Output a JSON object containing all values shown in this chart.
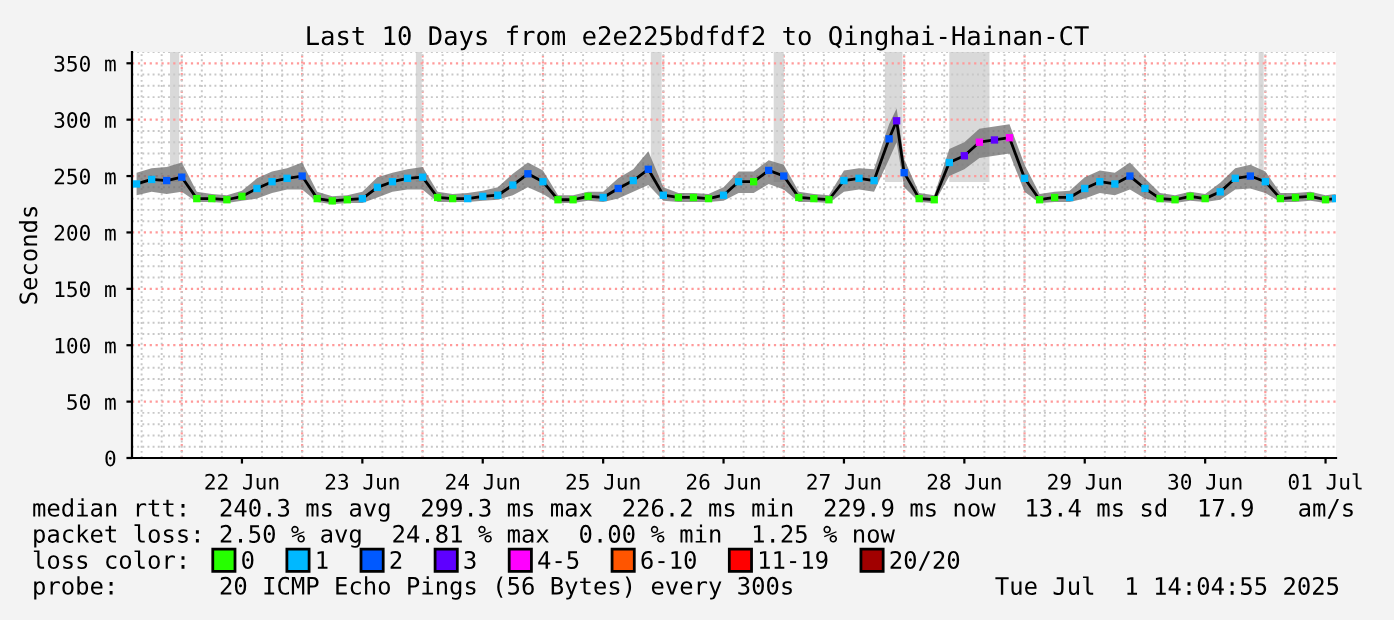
{
  "chart_data": {
    "type": "line",
    "title": "Last 10 Days from e2e225bdfdf2 to Qinghai-Hainan-CT",
    "ylabel": "Seconds",
    "xlim": [
      "2025-06-21T14:05",
      "2025-07-01T14:05"
    ],
    "xticks": [
      {
        "value": "2025-06-22T12:00",
        "label": "22 Jun"
      },
      {
        "value": "2025-06-23T12:00",
        "label": "23 Jun"
      },
      {
        "value": "2025-06-24T12:00",
        "label": "24 Jun"
      },
      {
        "value": "2025-06-25T12:00",
        "label": "25 Jun"
      },
      {
        "value": "2025-06-26T12:00",
        "label": "26 Jun"
      },
      {
        "value": "2025-06-27T12:00",
        "label": "27 Jun"
      },
      {
        "value": "2025-06-28T12:00",
        "label": "28 Jun"
      },
      {
        "value": "2025-06-29T12:00",
        "label": "29 Jun"
      },
      {
        "value": "2025-06-30T12:00",
        "label": "30 Jun"
      },
      {
        "value": "2025-07-01T12:00",
        "label": "01 Jul"
      }
    ],
    "ylim": [
      0,
      360
    ],
    "yticks": [
      0,
      {
        "value": 50,
        "label": "50 m"
      },
      {
        "value": 100,
        "label": "100 m"
      },
      {
        "value": 150,
        "label": "150 m"
      },
      {
        "value": 200,
        "label": "200 m"
      },
      {
        "value": 250,
        "label": "250 m"
      },
      {
        "value": 300,
        "label": "300 m"
      },
      {
        "value": 350,
        "label": "350 m"
      }
    ],
    "grid": true,
    "legend": "bottom",
    "legend_title": "loss color:",
    "x": [
      "2025-06-21T15:00",
      "2025-06-21T18:00",
      "2025-06-21T21:00",
      "2025-06-22T00:00",
      "2025-06-22T03:00",
      "2025-06-22T06:00",
      "2025-06-22T09:00",
      "2025-06-22T12:00",
      "2025-06-22T15:00",
      "2025-06-22T18:00",
      "2025-06-22T21:00",
      "2025-06-23T00:00",
      "2025-06-23T03:00",
      "2025-06-23T06:00",
      "2025-06-23T09:00",
      "2025-06-23T12:00",
      "2025-06-23T15:00",
      "2025-06-23T18:00",
      "2025-06-23T21:00",
      "2025-06-24T00:00",
      "2025-06-24T03:00",
      "2025-06-24T06:00",
      "2025-06-24T09:00",
      "2025-06-24T12:00",
      "2025-06-24T15:00",
      "2025-06-24T18:00",
      "2025-06-24T21:00",
      "2025-06-25T00:00",
      "2025-06-25T03:00",
      "2025-06-25T06:00",
      "2025-06-25T09:00",
      "2025-06-25T12:00",
      "2025-06-25T15:00",
      "2025-06-25T18:00",
      "2025-06-25T21:00",
      "2025-06-26T00:00",
      "2025-06-26T03:00",
      "2025-06-26T06:00",
      "2025-06-26T09:00",
      "2025-06-26T12:00",
      "2025-06-26T15:00",
      "2025-06-26T18:00",
      "2025-06-26T21:00",
      "2025-06-27T00:00",
      "2025-06-27T03:00",
      "2025-06-27T06:00",
      "2025-06-27T09:00",
      "2025-06-27T12:00",
      "2025-06-27T15:00",
      "2025-06-27T18:00",
      "2025-06-27T21:00",
      "2025-06-27T22:30",
      "2025-06-28T00:00",
      "2025-06-28T03:00",
      "2025-06-28T06:00",
      "2025-06-28T09:00",
      "2025-06-28T12:00",
      "2025-06-28T15:00",
      "2025-06-28T18:00",
      "2025-06-28T21:00",
      "2025-06-29T00:00",
      "2025-06-29T03:00",
      "2025-06-29T06:00",
      "2025-06-29T09:00",
      "2025-06-29T12:00",
      "2025-06-29T15:00",
      "2025-06-29T18:00",
      "2025-06-29T21:00",
      "2025-06-30T00:00",
      "2025-06-30T03:00",
      "2025-06-30T06:00",
      "2025-06-30T09:00",
      "2025-06-30T12:00",
      "2025-06-30T15:00",
      "2025-06-30T18:00",
      "2025-06-30T21:00",
      "2025-07-01T00:00",
      "2025-07-01T03:00",
      "2025-07-01T06:00",
      "2025-07-01T09:00",
      "2025-07-01T12:00",
      "2025-07-01T14:00"
    ],
    "series": [
      {
        "color": "#000000",
        "values": [
          243,
          247,
          246,
          249,
          230,
          230,
          229,
          232,
          239,
          245,
          248,
          250,
          230,
          228,
          229,
          230,
          240,
          245,
          248,
          249,
          231,
          230,
          230,
          232,
          233,
          242,
          252,
          245,
          229,
          229,
          232,
          231,
          239,
          246,
          256,
          233,
          231,
          231,
          230,
          233,
          245,
          245,
          255,
          250,
          231,
          230,
          229,
          246,
          248,
          246,
          283,
          299,
          253,
          230,
          229,
          262,
          268,
          280,
          282,
          284,
          248,
          229,
          231,
          231,
          239,
          245,
          243,
          250,
          239,
          230,
          229,
          232,
          230,
          236,
          248,
          250,
          245,
          230,
          231,
          232,
          229,
          230
        ],
        "lower": [
          233,
          236,
          234,
          236,
          227,
          227,
          226,
          228,
          230,
          235,
          238,
          238,
          227,
          225,
          226,
          226,
          231,
          236,
          238,
          238,
          227,
          227,
          227,
          228,
          229,
          233,
          240,
          234,
          226,
          226,
          228,
          227,
          230,
          236,
          242,
          228,
          227,
          227,
          227,
          228,
          235,
          235,
          243,
          238,
          227,
          227,
          226,
          236,
          238,
          236,
          265,
          280,
          240,
          227,
          226,
          250,
          256,
          266,
          268,
          270,
          236,
          226,
          227,
          227,
          230,
          235,
          233,
          238,
          230,
          227,
          226,
          228,
          227,
          229,
          238,
          239,
          235,
          227,
          227,
          228,
          226,
          227
        ],
        "upper": [
          253,
          257,
          258,
          262,
          236,
          234,
          233,
          237,
          248,
          254,
          257,
          262,
          236,
          232,
          233,
          236,
          249,
          253,
          256,
          258,
          236,
          234,
          235,
          237,
          240,
          252,
          262,
          255,
          233,
          233,
          236,
          236,
          248,
          256,
          272,
          240,
          235,
          235,
          234,
          240,
          254,
          254,
          264,
          260,
          236,
          234,
          233,
          255,
          257,
          256,
          296,
          310,
          265,
          235,
          233,
          274,
          280,
          292,
          294,
          296,
          260,
          234,
          236,
          237,
          249,
          255,
          253,
          262,
          248,
          235,
          233,
          236,
          234,
          244,
          257,
          260,
          254,
          235,
          235,
          236,
          233,
          234
        ]
      },
      {
        "type": "scatter",
        "name": "0",
        "color": "#26ff00",
        "marker": "square",
        "x": [
          "2025-06-22T03:00",
          "2025-06-22T06:00",
          "2025-06-22T09:00",
          "2025-06-22T12:00",
          "2025-06-23T03:00",
          "2025-06-23T06:00",
          "2025-06-23T09:00",
          "2025-06-24T03:00",
          "2025-06-24T06:00",
          "2025-06-25T03:00",
          "2025-06-25T06:00",
          "2025-06-25T09:00",
          "2025-06-26T03:00",
          "2025-06-26T06:00",
          "2025-06-26T09:00",
          "2025-06-26T18:00",
          "2025-06-27T03:00",
          "2025-06-27T06:00",
          "2025-06-27T09:00",
          "2025-06-28T03:00",
          "2025-06-28T06:00",
          "2025-06-29T03:00",
          "2025-06-29T06:00",
          "2025-06-30T03:00",
          "2025-06-30T06:00",
          "2025-06-30T09:00",
          "2025-06-30T12:00",
          "2025-07-01T03:00",
          "2025-07-01T06:00",
          "2025-07-01T09:00",
          "2025-07-01T12:00"
        ],
        "values": [
          230,
          230,
          229,
          232,
          230,
          228,
          229,
          231,
          230,
          229,
          229,
          232,
          231,
          231,
          230,
          245,
          231,
          230,
          229,
          230,
          229,
          229,
          231,
          230,
          229,
          232,
          230,
          230,
          231,
          232,
          229
        ]
      },
      {
        "type": "scatter",
        "name": "1",
        "color": "#00b8ff",
        "marker": "square",
        "x": [
          "2025-06-21T15:00",
          "2025-06-21T18:00",
          "2025-06-22T15:00",
          "2025-06-22T18:00",
          "2025-06-22T21:00",
          "2025-06-23T12:00",
          "2025-06-23T15:00",
          "2025-06-23T18:00",
          "2025-06-23T21:00",
          "2025-06-24T00:00",
          "2025-06-24T09:00",
          "2025-06-24T12:00",
          "2025-06-24T15:00",
          "2025-06-24T18:00",
          "2025-06-25T00:00",
          "2025-06-25T12:00",
          "2025-06-25T18:00",
          "2025-06-26T00:00",
          "2025-06-26T12:00",
          "2025-06-26T15:00",
          "2025-06-27T12:00",
          "2025-06-27T15:00",
          "2025-06-27T18:00",
          "2025-06-28T09:00",
          "2025-06-29T00:00",
          "2025-06-29T09:00",
          "2025-06-29T12:00",
          "2025-06-29T15:00",
          "2025-06-29T18:00",
          "2025-06-30T00:00",
          "2025-06-30T15:00",
          "2025-06-30T18:00",
          "2025-07-01T00:00",
          "2025-07-01T14:00"
        ],
        "values": [
          243,
          247,
          239,
          245,
          248,
          230,
          240,
          245,
          248,
          249,
          230,
          232,
          233,
          242,
          245,
          231,
          246,
          233,
          233,
          245,
          246,
          248,
          246,
          262,
          248,
          231,
          239,
          245,
          243,
          239,
          236,
          248,
          245,
          230
        ]
      },
      {
        "type": "scatter",
        "name": "2",
        "color": "#0059ff",
        "marker": "square",
        "x": [
          "2025-06-21T21:00",
          "2025-06-22T00:00",
          "2025-06-23T00:00",
          "2025-06-24T21:00",
          "2025-06-25T15:00",
          "2025-06-25T21:00",
          "2025-06-26T21:00",
          "2025-06-27T00:00",
          "2025-06-27T21:00",
          "2025-06-28T00:00",
          "2025-06-29T21:00",
          "2025-06-30T21:00"
        ],
        "values": [
          246,
          249,
          250,
          252,
          239,
          256,
          255,
          250,
          283,
          253,
          250,
          250
        ]
      },
      {
        "type": "scatter",
        "name": "3",
        "color": "#5e00ff",
        "marker": "square",
        "x": [
          "2025-06-27T22:30",
          "2025-06-28T12:00",
          "2025-06-28T18:00"
        ],
        "values": [
          299,
          268,
          282
        ]
      },
      {
        "type": "scatter",
        "name": "4-5",
        "color": "#ff00ff",
        "marker": "square",
        "x": [
          "2025-06-28T15:00",
          "2025-06-28T21:00"
        ],
        "values": [
          280,
          284
        ]
      },
      {
        "type": "scatter",
        "name": "6-10",
        "color": "#ff5500",
        "marker": "square",
        "values": [
          null,
          null,
          null,
          null,
          null,
          null,
          null,
          null,
          null,
          null,
          null,
          null,
          null,
          null,
          null,
          null,
          null,
          null,
          null,
          null,
          null,
          null,
          null,
          null,
          null,
          null,
          null,
          null,
          null,
          null,
          null,
          null,
          null,
          null,
          null,
          null,
          null,
          null,
          null,
          null,
          null,
          null,
          null,
          null,
          null,
          null,
          null,
          null,
          null,
          null,
          null,
          null,
          null,
          null,
          null,
          null,
          null,
          null,
          null,
          null,
          null,
          null,
          null,
          null,
          null,
          null,
          null,
          null,
          null,
          null,
          null,
          null,
          null,
          null,
          null,
          null,
          null,
          null,
          null,
          null,
          null,
          null
        ]
      },
      {
        "type": "scatter",
        "name": "11-19",
        "color": "#ff0000",
        "marker": "square",
        "values": [
          null,
          null,
          null,
          null,
          null,
          null,
          null,
          null,
          null,
          null,
          null,
          null,
          null,
          null,
          null,
          null,
          null,
          null,
          null,
          null,
          null,
          null,
          null,
          null,
          null,
          null,
          null,
          null,
          null,
          null,
          null,
          null,
          null,
          null,
          null,
          null,
          null,
          null,
          null,
          null,
          null,
          null,
          null,
          null,
          null,
          null,
          null,
          null,
          null,
          null,
          null,
          null,
          null,
          null,
          null,
          null,
          null,
          null,
          null,
          null,
          null,
          null,
          null,
          null,
          null,
          null,
          null,
          null,
          null,
          null,
          null,
          null,
          null,
          null,
          null,
          null,
          null,
          null,
          null,
          null,
          null,
          null
        ]
      },
      {
        "type": "scatter",
        "name": "20/20",
        "color": "#a10000",
        "marker": "square",
        "values": [
          null,
          null,
          null,
          null,
          null,
          null,
          null,
          null,
          null,
          null,
          null,
          null,
          null,
          null,
          null,
          null,
          null,
          null,
          null,
          null,
          null,
          null,
          null,
          null,
          null,
          null,
          null,
          null,
          null,
          null,
          null,
          null,
          null,
          null,
          null,
          null,
          null,
          null,
          null,
          null,
          null,
          null,
          null,
          null,
          null,
          null,
          null,
          null,
          null,
          null,
          null,
          null,
          null,
          null,
          null,
          null,
          null,
          null,
          null,
          null,
          null,
          null,
          null,
          null,
          null,
          null,
          null,
          null,
          null,
          null,
          null,
          null,
          null,
          null,
          null,
          null,
          null,
          null,
          null,
          null,
          null,
          null
        ]
      }
    ],
    "bands": [
      {
        "axis": "x",
        "from": "2025-06-21T21:40",
        "to": "2025-06-21T23:30",
        "color": "#d9d9d9"
      },
      {
        "axis": "x",
        "from": "2025-06-23T22:40",
        "to": "2025-06-23T23:50",
        "color": "#d9d9d9"
      },
      {
        "axis": "x",
        "from": "2025-06-25T21:30",
        "to": "2025-06-25T23:40",
        "color": "#d9d9d9"
      },
      {
        "axis": "x",
        "from": "2025-06-26T22:00",
        "to": "2025-06-27T00:00",
        "color": "#d9d9d9"
      },
      {
        "axis": "x",
        "from": "2025-06-27T20:10",
        "to": "2025-06-27T23:40",
        "color": "#d9d9d9"
      },
      {
        "axis": "x",
        "from": "2025-06-28T09:00",
        "to": "2025-06-28T17:00",
        "color": "#d9d9d9"
      },
      {
        "axis": "x",
        "from": "2025-06-30T22:40",
        "to": "2025-06-30T23:40",
        "color": "#d9d9d9"
      }
    ],
    "annotations": [
      "median rtt:  240.3 ms avg  299.3 ms max  226.2 ms min  229.9 ms now  13.4 ms sd  17.9   am/s",
      "packet loss: 2.50 % avg  24.81 % max  0.00 % min  1.25 % now",
      "probe:       20 ICMP Echo Pings (56 Bytes) every 300s",
      "Tue Jul  1 14:04:55 2025"
    ]
  }
}
